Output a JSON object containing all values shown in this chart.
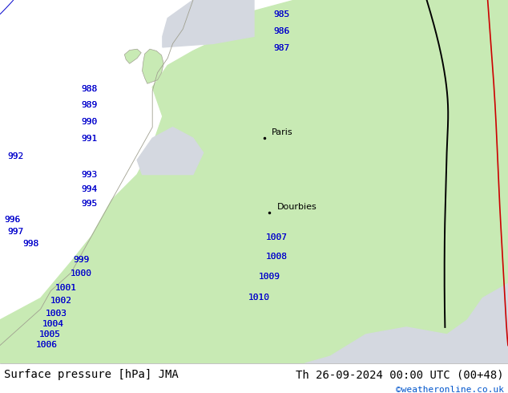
{
  "title_left": "Surface pressure [hPa] JMA",
  "title_right": "Th 26-09-2024 00:00 UTC (00+48)",
  "copyright": "©weatheronline.co.uk",
  "sea_color": "#d4d8e0",
  "land_color": "#c8eab4",
  "isobar_color": "#0000cc",
  "footer_bg": "#ffffff",
  "footer_text_color": "#000000",
  "copyright_color": "#0055cc",
  "pressure_levels": [
    985,
    986,
    987,
    988,
    989,
    990,
    991,
    992,
    993,
    994,
    995,
    996,
    997,
    998,
    999,
    1000,
    1001,
    1002,
    1003,
    1004,
    1005,
    1006,
    1007,
    1008,
    1009,
    1010
  ],
  "font_size_footer": 10,
  "font_size_label": 8,
  "font_size_city": 8,
  "coast_color": "#a0a090"
}
